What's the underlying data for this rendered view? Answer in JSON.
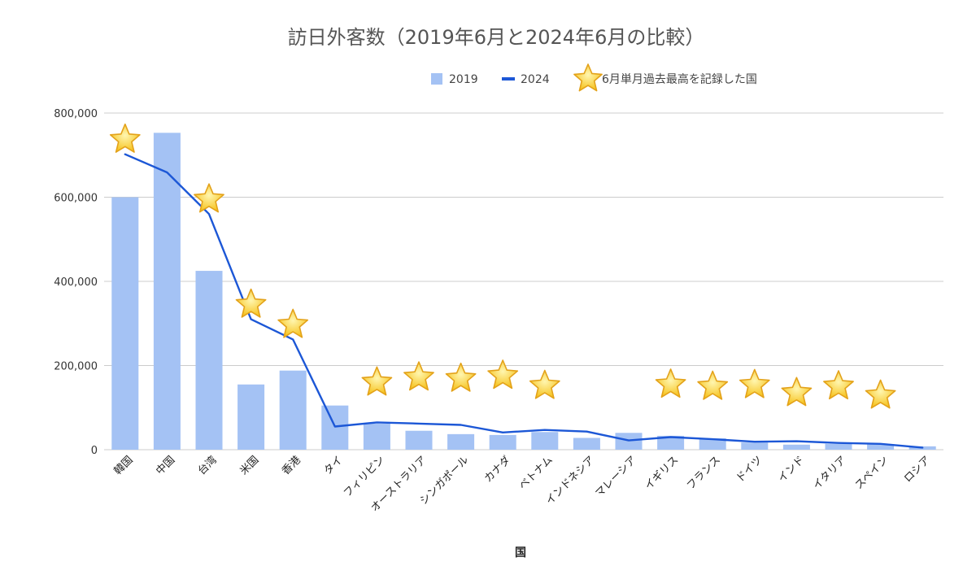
{
  "chart_data": {
    "type": "bar",
    "title": "訪日外客数（2019年6月と2024年6月の比較）",
    "xlabel": "国",
    "ylabel": "",
    "ylim": [
      0,
      800000
    ],
    "yticks": [
      "0",
      "200,000",
      "400,000",
      "600,000",
      "800,000"
    ],
    "grid": true,
    "legend_position": "top",
    "legend": [
      {
        "label": "2019",
        "kind": "bar"
      },
      {
        "label": "2024",
        "kind": "line"
      },
      {
        "label": "6月単月過去最高を記録した国",
        "kind": "star"
      }
    ],
    "categories": [
      "韓国",
      "中国",
      "台湾",
      "米国",
      "香港",
      "タイ",
      "フィリピン",
      "オーストラリア",
      "シンガポール",
      "カナダ",
      "ベトナム",
      "インドネシア",
      "マレーシア",
      "イギリス",
      "フランス",
      "ドイツ",
      "インド",
      "イタリア",
      "スペイン",
      "ロシア"
    ],
    "series": [
      {
        "name": "2019",
        "type": "bar",
        "color": "#a4c2f4",
        "values": [
          600000,
          753000,
          425000,
          155000,
          188000,
          105000,
          62000,
          45000,
          37000,
          35000,
          42000,
          28000,
          40000,
          33000,
          27000,
          17000,
          12000,
          14000,
          13000,
          8000
        ]
      },
      {
        "name": "2024",
        "type": "line",
        "color": "#1c57d6",
        "values": [
          702000,
          659000,
          560000,
          310000,
          262000,
          55000,
          65000,
          62000,
          59000,
          41000,
          47000,
          43000,
          22000,
          30000,
          25000,
          19000,
          20000,
          16000,
          14000,
          5000
        ]
      }
    ],
    "record_markers": [
      true,
      false,
      true,
      true,
      true,
      false,
      true,
      true,
      true,
      true,
      true,
      false,
      false,
      true,
      true,
      true,
      true,
      true,
      true,
      false
    ],
    "marker_offsets": [
      0,
      0,
      0,
      0,
      0,
      0,
      60000,
      75000,
      75000,
      100000,
      70000,
      0,
      0,
      90000,
      90000,
      100000,
      80000,
      100000,
      80000,
      0
    ]
  }
}
